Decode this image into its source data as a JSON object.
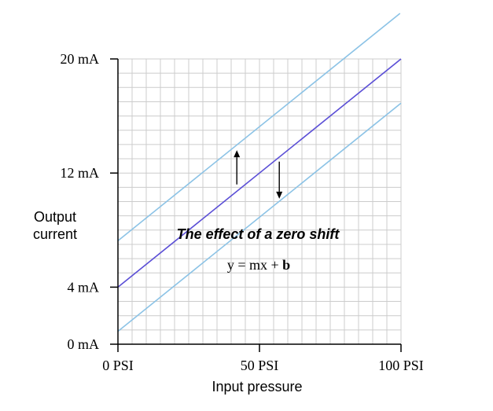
{
  "chart_data": {
    "type": "line",
    "xlabel": "Input pressure",
    "ylabel": [
      "Output",
      "current"
    ],
    "xlim": [
      0,
      100
    ],
    "ylim": [
      0,
      20
    ],
    "grid": true,
    "x_ticks": [
      {
        "value": 0,
        "label": "0 PSI"
      },
      {
        "value": 50,
        "label": "50 PSI"
      },
      {
        "value": 100,
        "label": "100 PSI"
      }
    ],
    "y_ticks": [
      {
        "value": 0,
        "label": "0 mA"
      },
      {
        "value": 4,
        "label": "4 mA"
      },
      {
        "value": 12,
        "label": "12 mA"
      },
      {
        "value": 20,
        "label": "20 mA"
      }
    ],
    "series": [
      {
        "color": "#5b4fd6",
        "x": [
          0,
          100
        ],
        "y": [
          4,
          20
        ]
      },
      {
        "color": "#8cc3e6",
        "x": [
          0,
          100
        ],
        "y": [
          7.25,
          23.25
        ]
      },
      {
        "color": "#8cc3e6",
        "x": [
          0,
          100
        ],
        "y": [
          0.9,
          16.9
        ]
      }
    ],
    "annotations": {
      "title": "The effect of a zero shift",
      "equation_main": "y = mx + ",
      "equation_bold": "b"
    },
    "arrows": [
      {
        "direction": "up",
        "x": 42,
        "y_from": 11.2,
        "y_to": 13.6
      },
      {
        "direction": "down",
        "x": 57,
        "y_from": 12.8,
        "y_to": 10.2
      }
    ]
  }
}
